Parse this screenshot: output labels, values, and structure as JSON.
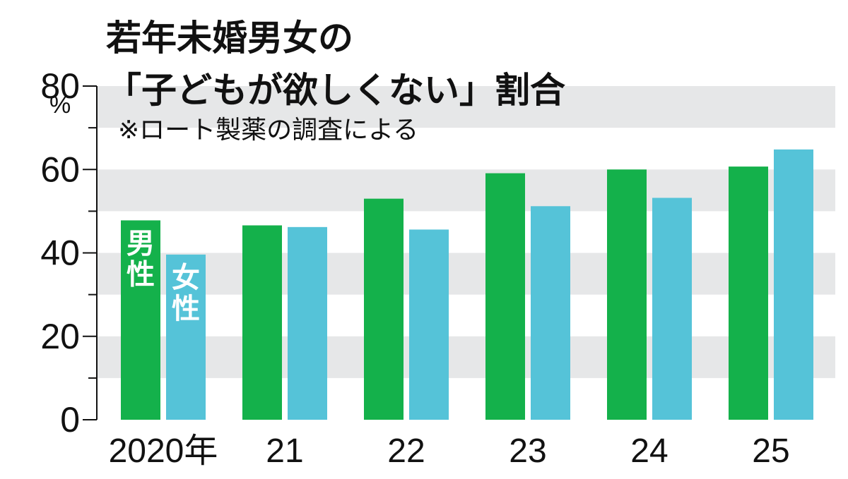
{
  "chart_data": {
    "type": "bar",
    "title_line1": "若年未婚男女の",
    "title_line2": "「子どもが欲しくない」割合",
    "source_note": "※ロート製薬の調査による",
    "y_unit": "%",
    "ylim": [
      0,
      80
    ],
    "yticks": [
      0,
      20,
      40,
      60,
      80
    ],
    "grid": "alternating horizontal bands",
    "categories": [
      "2020年",
      "21",
      "22",
      "23",
      "24",
      "25"
    ],
    "series": [
      {
        "name": "男性",
        "color": "#14b14b",
        "values": [
          47.8,
          46.6,
          53.0,
          59.1,
          60.0,
          60.7
        ]
      },
      {
        "name": "女性",
        "color": "#55c3d8",
        "values": [
          39.6,
          46.2,
          45.6,
          51.2,
          53.2,
          64.8
        ]
      }
    ],
    "series_label_placement": "inside first bar of each series"
  }
}
